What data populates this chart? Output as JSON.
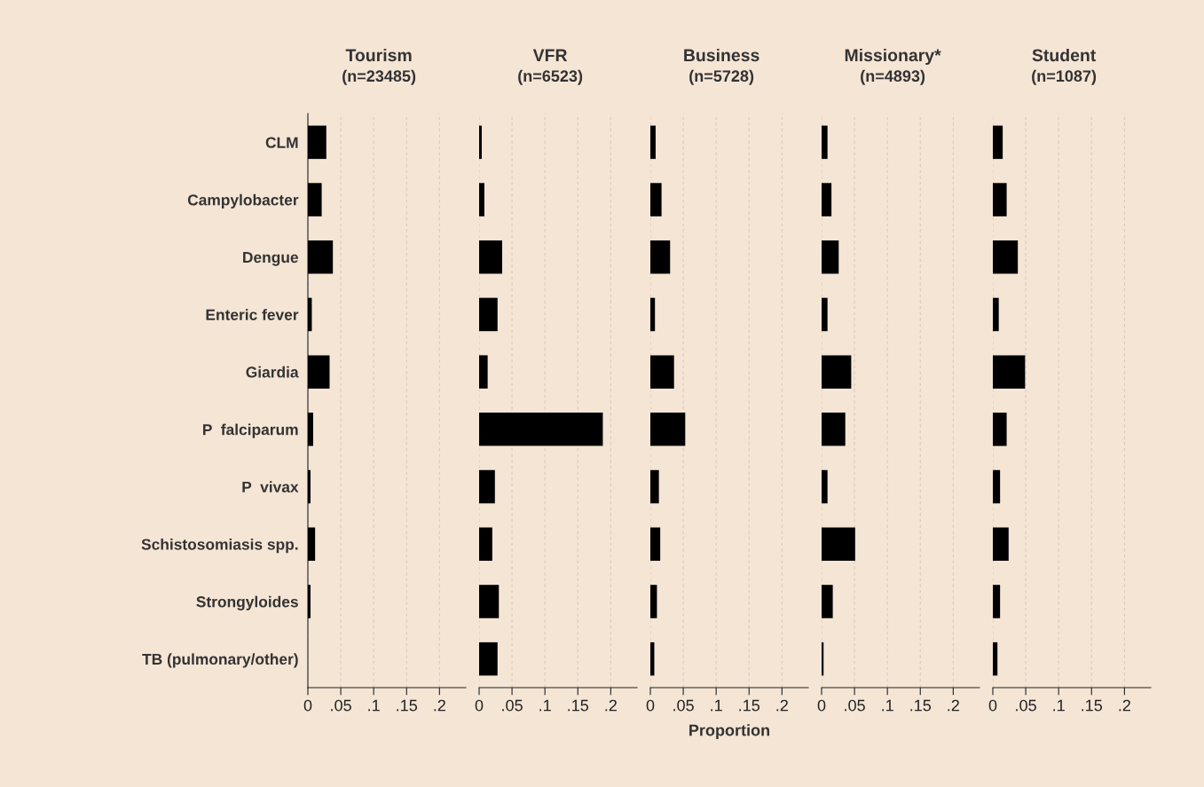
{
  "chart_data": [
    {
      "type": "bar",
      "orientation": "horizontal",
      "title": "Tourism",
      "subtitle": "(n=23485)",
      "categories": [
        "CLM",
        "Campylobacter",
        "Dengue",
        "Enteric fever",
        "Giardia",
        "P  falciparum",
        "P  vivax",
        "Schistosomiasis spp.",
        "Strongyloides",
        "TB (pulmonary/other)"
      ],
      "values": [
        0.028,
        0.021,
        0.038,
        0.006,
        0.033,
        0.008,
        0.004,
        0.011,
        0.004,
        0
      ],
      "color": "#000000",
      "xlim": [
        0,
        0.24
      ],
      "xticks": [
        0,
        {
          "value": 0.05,
          "label": ".05"
        },
        {
          "value": 0.1,
          "label": ".1"
        },
        {
          "value": 0.15,
          "label": ".15"
        },
        {
          "value": 0.2,
          "label": ".2"
        }
      ],
      "grid": "x"
    },
    {
      "type": "bar",
      "orientation": "horizontal",
      "title": "VFR",
      "subtitle": "(n=6523)",
      "categories": [
        null,
        null,
        null,
        null,
        null,
        null,
        null,
        null,
        null,
        null
      ],
      "values": [
        0.004,
        0.008,
        0.035,
        0.028,
        0.013,
        0.188,
        0.024,
        0.02,
        0.03,
        0.028
      ],
      "color": "#000000",
      "xlim": [
        0,
        0.24
      ],
      "xticks": [
        0,
        {
          "value": 0.05,
          "label": ".05"
        },
        {
          "value": 0.1,
          "label": ".1"
        },
        {
          "value": 0.15,
          "label": ".15"
        },
        {
          "value": 0.2,
          "label": ".2"
        }
      ],
      "grid": "x",
      "tick_labels": "x"
    },
    {
      "type": "bar",
      "orientation": "horizontal",
      "title": "Business",
      "subtitle": "(n=5728)",
      "xlabel": "Proportion",
      "categories": [
        null,
        null,
        null,
        null,
        null,
        null,
        null,
        null,
        null,
        null
      ],
      "values": [
        0.008,
        0.017,
        0.03,
        0.007,
        0.036,
        0.053,
        0.013,
        0.015,
        0.01,
        0.006
      ],
      "color": "#000000",
      "xlim": [
        0,
        0.24
      ],
      "xticks": [
        0,
        {
          "value": 0.05,
          "label": ".05"
        },
        {
          "value": 0.1,
          "label": ".1"
        },
        {
          "value": 0.15,
          "label": ".15"
        },
        {
          "value": 0.2,
          "label": ".2"
        }
      ],
      "grid": "x",
      "tick_labels": "x"
    },
    {
      "type": "bar",
      "orientation": "horizontal",
      "title": "Missionary*",
      "subtitle": "(n=4893)",
      "categories": [
        null,
        null,
        null,
        null,
        null,
        null,
        null,
        null,
        null,
        null
      ],
      "values": [
        0.009,
        0.015,
        0.026,
        0.009,
        0.045,
        0.036,
        0.009,
        0.051,
        0.017,
        0.003
      ],
      "color": "#000000",
      "xlim": [
        0,
        0.24
      ],
      "xticks": [
        0,
        {
          "value": 0.05,
          "label": ".05"
        },
        {
          "value": 0.1,
          "label": ".1"
        },
        {
          "value": 0.15,
          "label": ".15"
        },
        {
          "value": 0.2,
          "label": ".2"
        }
      ],
      "grid": "x",
      "tick_labels": "x"
    },
    {
      "type": "bar",
      "orientation": "horizontal",
      "title": "Student",
      "subtitle": "(n=1087)",
      "categories": [
        null,
        null,
        null,
        null,
        null,
        null,
        null,
        null,
        null,
        null
      ],
      "values": [
        0.015,
        0.021,
        0.038,
        0.009,
        0.049,
        0.021,
        0.011,
        0.024,
        0.011,
        0.007
      ],
      "color": "#000000",
      "xlim": [
        0,
        0.24
      ],
      "xticks": [
        0,
        {
          "value": 0.05,
          "label": ".05"
        },
        {
          "value": 0.1,
          "label": ".1"
        },
        {
          "value": 0.15,
          "label": ".15"
        },
        {
          "value": 0.2,
          "label": ".2"
        }
      ],
      "grid": "x",
      "tick_labels": "x"
    }
  ]
}
